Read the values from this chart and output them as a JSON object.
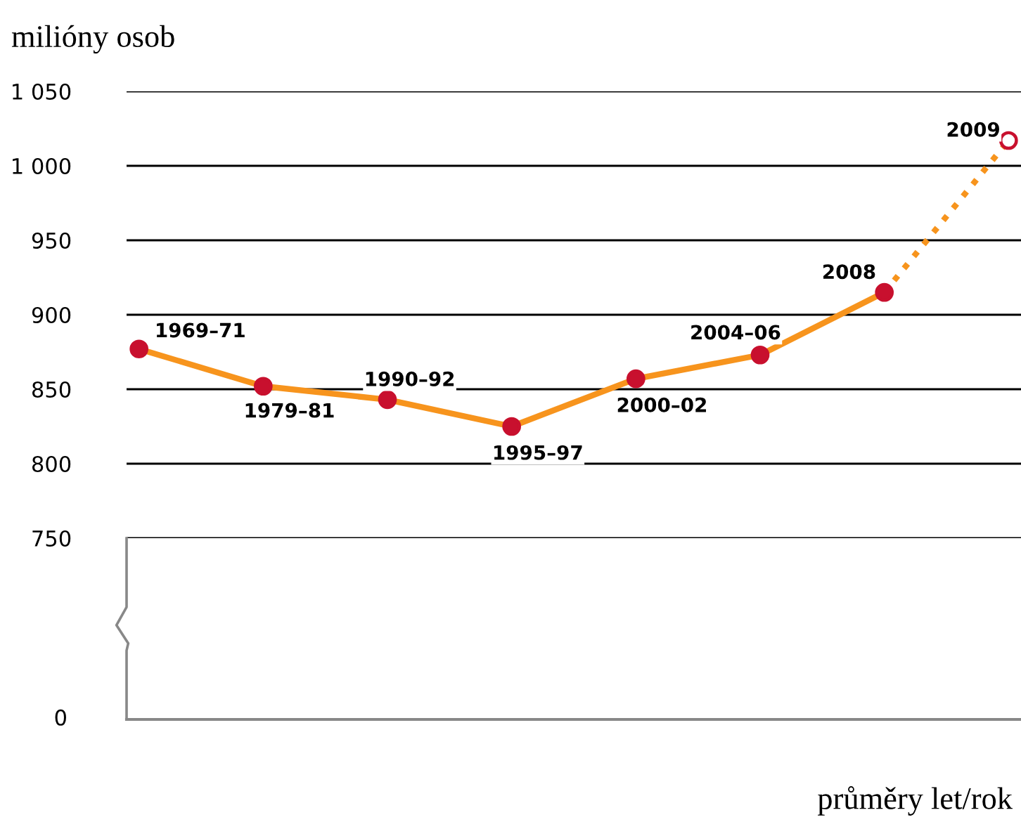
{
  "chart_data": {
    "type": "line",
    "ylabel": "milióny osob",
    "categories": [
      null,
      null,
      null,
      null,
      null,
      null,
      null,
      null
    ],
    "series": [
      {
        "color": "#f7941d",
        "colors": [
          "#c8102e",
          "#c8102e",
          "#c8102e",
          "#c8102e",
          "#c8102e",
          "#c8102e",
          "#c8102e",
          null
        ],
        "values": [
          877,
          852,
          843,
          825,
          857,
          873,
          915,
          null
        ],
        "line_style": "solid",
        "marker": "circle"
      },
      {
        "color": "#f7941d",
        "colors": [
          null,
          null,
          null,
          null,
          null,
          null,
          null,
          "#c8102e"
        ],
        "values": [
          null,
          null,
          null,
          null,
          null,
          null,
          915,
          1017
        ],
        "line_style": "dotted",
        "marker": "circle"
      }
    ],
    "annotations": [
      "0",
      "průměry let/rok",
      "1969–71",
      "1979–81",
      "1990–92",
      "1995–97",
      "2000–02",
      "2004–06",
      "2008",
      "2009"
    ],
    "ylim": [
      750,
      1050
    ],
    "yticks": [
      {
        "value": 750,
        "label": "750"
      },
      {
        "value": 800,
        "label": "800"
      },
      {
        "value": 850,
        "label": "850"
      },
      {
        "value": 900,
        "label": "900"
      },
      {
        "value": 950,
        "label": "950"
      },
      {
        "value": 1000,
        "label": "1 000"
      },
      {
        "value": 1050,
        "label": "1 050"
      }
    ],
    "grid": "y",
    "tick_labels": "y"
  }
}
